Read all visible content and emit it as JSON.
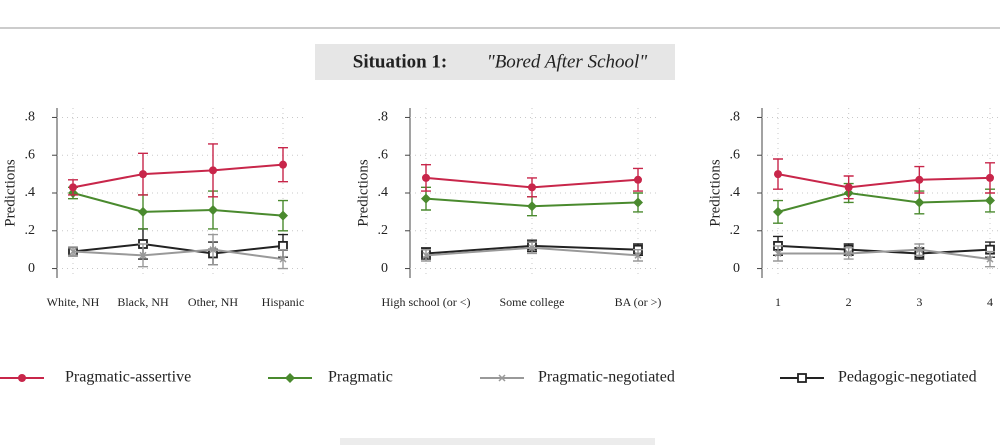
{
  "title": "Situation 1:",
  "subtitle": "\"Bored After School\"",
  "chart_data": [
    {
      "type": "line",
      "ylabel": "Predictions",
      "ylim": [
        -0.05,
        0.85
      ],
      "yticks": [
        0,
        {
          "value": 0.2,
          "label": ".2"
        },
        {
          "value": 0.4,
          "label": ".4"
        },
        {
          "value": 0.6,
          "label": ".6"
        },
        {
          "value": 0.8,
          "label": ".8"
        }
      ],
      "grid": true,
      "legend": "bottom",
      "categories": [
        "White, NH",
        "Black, NH",
        "Other, NH",
        "Hispanic"
      ],
      "series": [
        {
          "name": "Pragmatic-assertive",
          "color": "#c8264a",
          "marker": "circle",
          "values": [
            0.43,
            0.5,
            0.52,
            0.55
          ],
          "errors": [
            0.04,
            0.11,
            0.14,
            0.09
          ]
        },
        {
          "name": "Pragmatic",
          "color": "#4a8a2e",
          "marker": "diamond",
          "values": [
            0.4,
            0.3,
            0.31,
            0.28
          ],
          "errors": [
            0.03,
            0.09,
            0.1,
            0.08
          ]
        },
        {
          "name": "Pragmatic-negotiated",
          "color": "#999999",
          "marker": "x",
          "values": [
            0.09,
            0.07,
            0.1,
            0.05
          ],
          "errors": [
            0.02,
            0.06,
            0.08,
            0.05
          ]
        },
        {
          "name": "Pedagogic-negotiated",
          "color": "#222222",
          "marker": "square",
          "values": [
            0.09,
            0.13,
            0.08,
            0.12
          ],
          "errors": [
            0.02,
            0.08,
            0.06,
            0.06
          ]
        }
      ]
    },
    {
      "type": "line",
      "ylabel": "Predictions",
      "ylim": [
        -0.05,
        0.85
      ],
      "yticks": [
        0,
        {
          "value": 0.2,
          "label": ".2"
        },
        {
          "value": 0.4,
          "label": ".4"
        },
        {
          "value": 0.6,
          "label": ".6"
        },
        {
          "value": 0.8,
          "label": ".8"
        }
      ],
      "grid": true,
      "categories": [
        "High school (or <)",
        "Some college",
        "BA (or >)"
      ],
      "series": [
        {
          "name": "Pragmatic-assertive",
          "color": "#c8264a",
          "marker": "circle",
          "values": [
            0.48,
            0.43,
            0.47
          ],
          "errors": [
            0.07,
            0.05,
            0.06
          ]
        },
        {
          "name": "Pragmatic",
          "color": "#4a8a2e",
          "marker": "diamond",
          "values": [
            0.37,
            0.33,
            0.35
          ],
          "errors": [
            0.06,
            0.05,
            0.05
          ]
        },
        {
          "name": "Pragmatic-negotiated",
          "color": "#999999",
          "marker": "x",
          "values": [
            0.07,
            0.11,
            0.07
          ],
          "errors": [
            0.03,
            0.03,
            0.03
          ]
        },
        {
          "name": "Pedagogic-negotiated",
          "color": "#222222",
          "marker": "square",
          "values": [
            0.08,
            0.12,
            0.1
          ],
          "errors": [
            0.03,
            0.03,
            0.03
          ]
        }
      ]
    },
    {
      "type": "line",
      "ylabel": "Predictions",
      "ylim": [
        -0.05,
        0.85
      ],
      "yticks": [
        0,
        {
          "value": 0.2,
          "label": ".2"
        },
        {
          "value": 0.4,
          "label": ".4"
        },
        {
          "value": 0.6,
          "label": ".6"
        },
        {
          "value": 0.8,
          "label": ".8"
        }
      ],
      "grid": true,
      "categories": [
        "1",
        "2",
        "3",
        "4"
      ],
      "series": [
        {
          "name": "Pragmatic-assertive",
          "color": "#c8264a",
          "marker": "circle",
          "values": [
            0.5,
            0.43,
            0.47,
            0.48
          ],
          "errors": [
            0.08,
            0.06,
            0.07,
            0.08
          ]
        },
        {
          "name": "Pragmatic",
          "color": "#4a8a2e",
          "marker": "diamond",
          "values": [
            0.3,
            0.4,
            0.35,
            0.36
          ],
          "errors": [
            0.06,
            0.05,
            0.06,
            0.06
          ]
        },
        {
          "name": "Pragmatic-negotiated",
          "color": "#999999",
          "marker": "x",
          "values": [
            0.08,
            0.08,
            0.1,
            0.05
          ],
          "errors": [
            0.04,
            0.03,
            0.03,
            0.04
          ]
        },
        {
          "name": "Pedagogic-negotiated",
          "color": "#222222",
          "marker": "square",
          "values": [
            0.12,
            0.1,
            0.08,
            0.1
          ],
          "errors": [
            0.05,
            0.03,
            0.03,
            0.04
          ]
        }
      ]
    }
  ]
}
